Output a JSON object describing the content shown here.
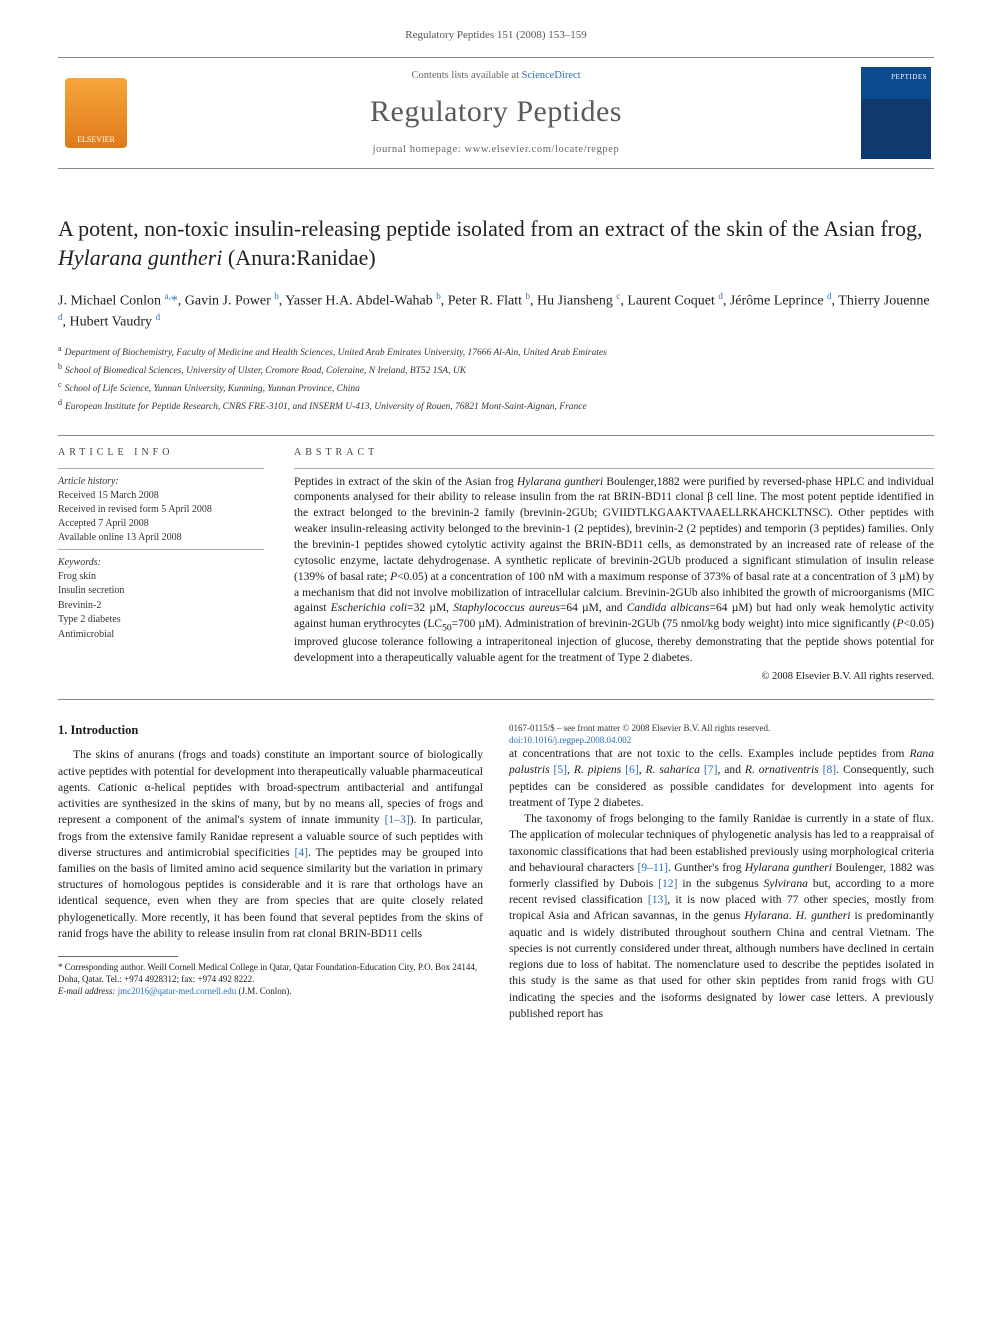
{
  "running_head": "Regulatory Peptides 151 (2008) 153–159",
  "masthead": {
    "contents_prefix": "Contents lists available at ",
    "contents_link": "ScienceDirect",
    "journal_title": "Regulatory Peptides",
    "homepage_label": "journal homepage: www.elsevier.com/locate/regpep",
    "publisher_logo_label": "ELSEVIER"
  },
  "article": {
    "title_html": "A potent, non-toxic insulin-releasing peptide isolated from an extract of the skin of the Asian frog, <em>Hylarana guntheri</em> (Anura:Ranidae)",
    "authors_html": "J. Michael Conlon <sup>a,</sup><span class='star'>*</span>, Gavin J. Power <sup>b</sup>, Yasser H.A. Abdel-Wahab <sup>b</sup>, Peter R. Flatt <sup>b</sup>, Hu Jiansheng <sup>c</sup>, Laurent Coquet <sup>d</sup>, Jérôme Leprince <sup>d</sup>, Thierry Jouenne <sup>d</sup>, Hubert Vaudry <sup>d</sup>",
    "affiliations": [
      {
        "key": "a",
        "text": "Department of Biochemistry, Faculty of Medicine and Health Sciences, United Arab Emirates University, 17666 Al-Ain, United Arab Emirates"
      },
      {
        "key": "b",
        "text": "School of Biomedical Sciences, University of Ulster, Cromore Road, Coleraine, N Ireland, BT52 1SA, UK"
      },
      {
        "key": "c",
        "text": "School of Life Science, Yunnan University, Kunming, Yunnan Province, China"
      },
      {
        "key": "d",
        "text": "European Institute for Peptide Research, CNRS FRE-3101, and INSERM U-413, University of Rouen, 76821 Mont-Saint-Aignan, France"
      }
    ]
  },
  "info": {
    "heading": "ARTICLE INFO",
    "history_label": "Article history:",
    "history": [
      "Received 15 March 2008",
      "Received in revised form 5 April 2008",
      "Accepted 7 April 2008",
      "Available online 13 April 2008"
    ],
    "keywords_label": "Keywords:",
    "keywords": [
      "Frog skin",
      "Insulin secretion",
      "Brevinin-2",
      "Type 2 diabetes",
      "Antimicrobial"
    ]
  },
  "abstract": {
    "heading": "ABSTRACT",
    "text_html": "Peptides in extract of the skin of the Asian frog <em>Hylarana guntheri</em> Boulenger,1882 were purified by reversed-phase HPLC and individual components analysed for their ability to release insulin from the rat BRIN-BD11 clonal β cell line. The most potent peptide identified in the extract belonged to the brevinin-2 family (brevinin-2GUb; GVIIDTLKGAAKTVAAELLRKAHCKLTNSC). Other peptides with weaker insulin-releasing activity belonged to the brevinin-1 (2 peptides), brevinin-2 (2 peptides) and temporin (3 peptides) families. Only the brevinin-1 peptides showed cytolytic activity against the BRIN-BD11 cells, as demonstrated by an increased rate of release of the cytosolic enzyme, lactate dehydrogenase. A synthetic replicate of brevinin-2GUb produced a significant stimulation of insulin release (139% of basal rate; <em>P</em><0.05) at a concentration of 100 nM with a maximum response of 373% of basal rate at a concentration of 3 µM) by a mechanism that did not involve mobilization of intracellular calcium. Brevinin-2GUb also inhibited the growth of microorganisms (MIC against <em>Escherichia coli</em>=32 µM, <em>Staphylococcus aureus</em>=64 µM, and <em>Candida albicans</em>=64 µM) but had only weak hemolytic activity against human erythrocytes (LC<sub>50</sub>=700 µM). Administration of brevinin-2GUb (75 nmol/kg body weight) into mice significantly (<em>P</em><0.05) improved glucose tolerance following a intraperitoneal injection of glucose, thereby demonstrating that the peptide shows potential for development into a therapeutically valuable agent for the treatment of Type 2 diabetes.",
    "copyright": "© 2008 Elsevier B.V. All rights reserved."
  },
  "body": {
    "section_heading": "1. Introduction",
    "p1_html": "The skins of anurans (frogs and toads) constitute an important source of biologically active peptides with potential for development into therapeutically valuable pharmaceutical agents. Cationic α-helical peptides with broad-spectrum antibacterial and antifungal activities are synthesized in the skins of many, but by no means all, species of frogs and represent a component of the animal's system of innate immunity <span class='ref'>[1–3]</span>). In particular, frogs from the extensive family Ranidae represent a valuable source of such peptides with diverse structures and antimicrobial specificities <span class='ref'>[4]</span>. The peptides may be grouped into families on the basis of limited amino acid sequence similarity but the variation in primary structures of homologous peptides is considerable and it is rare that orthologs have an identical sequence, even when they are from species that are quite closely related phylogenetically. More recently, it has been found that several peptides from the skins of ranid frogs have the ability to release insulin from rat clonal BRIN-BD11 cells",
    "p2_html": "at concentrations that are not toxic to the cells. Examples include peptides from <em>Rana palustris</em> <span class='ref'>[5]</span>, <em>R. pipiens</em> <span class='ref'>[6]</span>, <em>R. saharica</em> <span class='ref'>[7]</span>, and <em>R. ornativentris</em> <span class='ref'>[8]</span>. Consequently, such peptides can be considered as possible candidates for development into agents for treatment of Type 2 diabetes.",
    "p3_html": "The taxonomy of frogs belonging to the family Ranidae is currently in a state of flux. The application of molecular techniques of phylogenetic analysis has led to a reappraisal of taxonomic classifications that had been established previously using morphological criteria and behavioural characters <span class='ref'>[9–11]</span>. Gunther's frog <em>Hylarana guntheri</em> Boulenger, 1882 was formerly classified by Dubois <span class='ref'>[12]</span> in the subgenus <em>Sylvirana</em> but, according to a more recent revised classification <span class='ref'>[13]</span>, it is now placed with 77 other species, mostly from tropical Asia and African savannas, in the genus <em>Hylarana</em>. <em>H. guntheri</em> is predominantly aquatic and is widely distributed throughout southern China and central Vietnam. The species is not currently considered under threat, although numbers have declined in certain regions due to loss of habitat. The nomenclature used to describe the peptides isolated in this study is the same as that used for other skin peptides from ranid frogs with GU indicating the species and the isoforms designated by lower case letters. A previously published report has"
  },
  "footnote": {
    "corr_html": "* Corresponding author. Weill Cornell Medical College in Qatar, Qatar Foundation-Education City, P.O. Box 24144, Doha, Qatar. Tel.: +974 4928312; fax: +974 492 8222.",
    "email_label": "E-mail address:",
    "email": "jmc2016@qatar-med.cornell.edu",
    "email_owner": "(J.M. Conlon)."
  },
  "footer": {
    "line1": "0167-0115/$ – see front matter © 2008 Elsevier B.V. All rights reserved.",
    "line2": "doi:10.1016/j.regpep.2008.04.002"
  }
}
